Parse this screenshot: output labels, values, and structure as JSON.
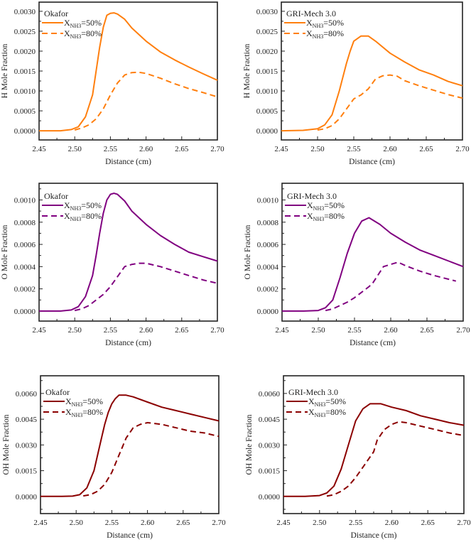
{
  "chart_data": [
    {
      "type": "line",
      "panel": "H-Okafor",
      "title": "Okafor",
      "xlabel": "Distance (cm)",
      "ylabel": "H Mole Fraction",
      "xlim": [
        2.45,
        2.7
      ],
      "ylim": [
        -0.00023,
        0.00323
      ],
      "xticks": [
        "2.45",
        "2.50",
        "2.55",
        "2.60",
        "2.65",
        "2.70"
      ],
      "yticks": [
        "0.0000",
        "0.0005",
        "0.0010",
        "0.0015",
        "0.0020",
        "0.0025",
        "0.0030"
      ],
      "color": "#ff7f0e",
      "legend_position": "top-left",
      "series": [
        {
          "name": "X_NH3=50%",
          "label_main": "X",
          "label_sub": "NH3",
          "label_tail": "=50%",
          "style": "solid",
          "x": [
            2.45,
            2.48,
            2.495,
            2.505,
            2.515,
            2.525,
            2.53,
            2.535,
            2.54,
            2.545,
            2.55,
            2.555,
            2.56,
            2.57,
            2.58,
            2.6,
            2.62,
            2.64,
            2.66,
            2.68,
            2.7
          ],
          "y": [
            0,
            0,
            3e-05,
            0.0001,
            0.00035,
            0.0009,
            0.0015,
            0.0021,
            0.0026,
            0.0029,
            0.00295,
            0.00296,
            0.00293,
            0.0028,
            0.00258,
            0.00225,
            0.00198,
            0.00178,
            0.0016,
            0.00143,
            0.00127
          ]
        },
        {
          "name": "X_NH3=80%",
          "label_main": "X",
          "label_sub": "NH3",
          "label_tail": "=80%",
          "style": "dashed",
          "x": [
            2.5,
            2.51,
            2.52,
            2.53,
            2.54,
            2.55,
            2.56,
            2.57,
            2.58,
            2.59,
            2.6,
            2.62,
            2.64,
            2.66,
            2.68,
            2.7
          ],
          "y": [
            2e-05,
            7e-05,
            0.00015,
            0.0003,
            0.00055,
            0.0009,
            0.0012,
            0.0014,
            0.00146,
            0.00147,
            0.00144,
            0.00132,
            0.00118,
            0.00106,
            0.00096,
            0.00085
          ]
        }
      ]
    },
    {
      "type": "line",
      "panel": "H-GRI",
      "title": "GRI-Mech 3.0",
      "xlabel": "Distance (cm)",
      "ylabel": "H Mole Fraction",
      "xlim": [
        2.45,
        2.7
      ],
      "ylim": [
        -0.00023,
        0.00323
      ],
      "xticks": [
        "2.45",
        "2.50",
        "2.55",
        "2.60",
        "2.65",
        "2.70"
      ],
      "yticks": [
        "0.0000",
        "0.0005",
        "0.0010",
        "0.0015",
        "0.0020",
        "0.0025",
        "0.0030"
      ],
      "color": "#ff7f0e",
      "legend_position": "top-left",
      "series": [
        {
          "name": "X_NH3=50%",
          "label_main": "X",
          "label_sub": "NH3",
          "label_tail": "=50%",
          "style": "solid",
          "x": [
            2.45,
            2.48,
            2.5,
            2.51,
            2.52,
            2.53,
            2.54,
            2.545,
            2.55,
            2.56,
            2.57,
            2.58,
            2.6,
            2.62,
            2.64,
            2.66,
            2.68,
            2.7
          ],
          "y": [
            0,
            1e-05,
            5e-05,
            0.00015,
            0.0004,
            0.001,
            0.0017,
            0.002,
            0.00225,
            0.00238,
            0.00238,
            0.00225,
            0.00195,
            0.00173,
            0.00153,
            0.0014,
            0.00124,
            0.00113
          ]
        },
        {
          "name": "X_NH3=80%",
          "label_main": "X",
          "label_sub": "NH3",
          "label_tail": "=80%",
          "style": "dashed",
          "x": [
            2.5,
            2.51,
            2.52,
            2.53,
            2.54,
            2.55,
            2.56,
            2.57,
            2.58,
            2.59,
            2.6,
            2.61,
            2.62,
            2.64,
            2.66,
            2.68,
            2.7
          ],
          "y": [
            2e-05,
            5e-05,
            0.00013,
            0.0003,
            0.00055,
            0.0008,
            0.0009,
            0.00105,
            0.0013,
            0.00138,
            0.0014,
            0.00137,
            0.00126,
            0.00113,
            0.00102,
            0.00091,
            0.00082
          ]
        }
      ]
    },
    {
      "type": "line",
      "panel": "O-Okafor",
      "title": "Okafor",
      "xlabel": "Distance (cm)",
      "ylabel": "O  Mole Fraction",
      "xlim": [
        2.45,
        2.7
      ],
      "ylim": [
        -9e-05,
        0.00115
      ],
      "xticks": [
        "2.45",
        "2.50",
        "2.55",
        "2.60",
        "2.65",
        "2.70"
      ],
      "yticks": [
        "0.0000",
        "0.0002",
        "0.0004",
        "0.0006",
        "0.0008",
        "0.0010"
      ],
      "color": "#800080",
      "legend_position": "top-left",
      "series": [
        {
          "name": "X_NH3=50%",
          "label_main": "X",
          "label_sub": "NH3",
          "label_tail": "=50%",
          "style": "solid",
          "x": [
            2.45,
            2.48,
            2.495,
            2.505,
            2.515,
            2.525,
            2.53,
            2.535,
            2.54,
            2.545,
            2.55,
            2.555,
            2.56,
            2.57,
            2.58,
            2.6,
            2.62,
            2.64,
            2.66,
            2.68,
            2.7
          ],
          "y": [
            0,
            0,
            1e-05,
            4e-05,
            0.00013,
            0.00032,
            0.0005,
            0.0007,
            0.00088,
            0.001,
            0.00105,
            0.00106,
            0.00105,
            0.00099,
            0.0009,
            0.00078,
            0.00068,
            0.0006,
            0.00053,
            0.00049,
            0.00045
          ]
        },
        {
          "name": "X_NH3=80%",
          "label_main": "X",
          "label_sub": "NH3",
          "label_tail": "=80%",
          "style": "dashed",
          "x": [
            2.5,
            2.51,
            2.52,
            2.53,
            2.54,
            2.55,
            2.56,
            2.57,
            2.58,
            2.59,
            2.6,
            2.62,
            2.64,
            2.66,
            2.68,
            2.7
          ],
          "y": [
            5e-06,
            2e-05,
            5e-05,
            0.0001,
            0.00015,
            0.00022,
            0.00031,
            0.0004,
            0.00042,
            0.00043,
            0.00043,
            0.0004,
            0.00036,
            0.00032,
            0.00028,
            0.00025
          ]
        }
      ]
    },
    {
      "type": "line",
      "panel": "O-GRI",
      "title": "GRI-Mech 3.0",
      "xlabel": "Distance (cm)",
      "ylabel": "O  Mole Fraction",
      "xlim": [
        2.45,
        2.7
      ],
      "ylim": [
        -9e-05,
        0.00115
      ],
      "xticks": [
        "2.45",
        "2.50",
        "2.55",
        "2.60",
        "2.65",
        "2.70"
      ],
      "yticks": [
        "0.0000",
        "0.0002",
        "0.0004",
        "0.0006",
        "0.0008",
        "0.0010"
      ],
      "color": "#800080",
      "legend_position": "top-left",
      "series": [
        {
          "name": "X_NH3=50%",
          "label_main": "X",
          "label_sub": "NH3",
          "label_tail": "=50%",
          "style": "solid",
          "x": [
            2.45,
            2.48,
            2.5,
            2.51,
            2.52,
            2.53,
            2.54,
            2.55,
            2.56,
            2.57,
            2.585,
            2.6,
            2.62,
            2.64,
            2.66,
            2.68,
            2.7
          ],
          "y": [
            0,
            0,
            5e-06,
            3e-05,
            0.0001,
            0.0003,
            0.00052,
            0.0007,
            0.00081,
            0.00084,
            0.00078,
            0.0007,
            0.00062,
            0.00055,
            0.0005,
            0.00045,
            0.0004
          ]
        },
        {
          "name": "X_NH3=80%",
          "label_main": "X",
          "label_sub": "NH3",
          "label_tail": "=80%",
          "style": "dashed",
          "x": [
            2.51,
            2.52,
            2.53,
            2.54,
            2.55,
            2.56,
            2.57,
            2.575,
            2.58,
            2.59,
            2.6,
            2.61,
            2.62,
            2.64,
            2.66,
            2.69
          ],
          "y": [
            5e-06,
            2e-05,
            5e-05,
            8e-05,
            0.00012,
            0.00017,
            0.00022,
            0.00025,
            0.0003,
            0.0004,
            0.00042,
            0.00044,
            0.00041,
            0.00036,
            0.00032,
            0.00027
          ]
        }
      ]
    },
    {
      "type": "line",
      "panel": "OH-Okafor",
      "title": "Okafor",
      "xlabel": "Distance (cm)",
      "ylabel": "OH  Mole Fraction",
      "xlim": [
        2.45,
        2.7
      ],
      "ylim": [
        -0.001,
        0.00703
      ],
      "xticks": [
        "2.45",
        "2.50",
        "2.55",
        "2.60",
        "2.65",
        "2.70"
      ],
      "yticks": [
        "0.0000",
        "0.0015",
        "0.0030",
        "0.0045",
        "0.0060"
      ],
      "color": "#8b0000",
      "legend_position": "top-left",
      "series": [
        {
          "name": "X_NH3=50%",
          "label_main": "X",
          "label_sub": "NH3",
          "label_tail": "=50%",
          "style": "solid",
          "x": [
            2.45,
            2.48,
            2.495,
            2.505,
            2.515,
            2.525,
            2.53,
            2.535,
            2.54,
            2.545,
            2.55,
            2.555,
            2.56,
            2.565,
            2.57,
            2.58,
            2.6,
            2.62,
            2.64,
            2.66,
            2.68,
            2.7
          ],
          "y": [
            0,
            0,
            2e-05,
            0.0001,
            0.0005,
            0.0015,
            0.0024,
            0.0033,
            0.0042,
            0.0049,
            0.0054,
            0.0057,
            0.0059,
            0.0059,
            0.0059,
            0.0058,
            0.0055,
            0.0052,
            0.005,
            0.0048,
            0.0046,
            0.0044
          ]
        },
        {
          "name": "X_NH3=80%",
          "label_main": "X",
          "label_sub": "NH3",
          "label_tail": "=80%",
          "style": "dashed",
          "x": [
            2.51,
            2.52,
            2.53,
            2.54,
            2.55,
            2.56,
            2.565,
            2.57,
            2.58,
            2.59,
            2.6,
            2.62,
            2.64,
            2.66,
            2.68,
            2.7
          ],
          "y": [
            3e-05,
            0.0001,
            0.0003,
            0.0007,
            0.0014,
            0.0024,
            0.0029,
            0.0034,
            0.004,
            0.0042,
            0.0043,
            0.0042,
            0.004,
            0.0038,
            0.0037,
            0.0035
          ]
        }
      ]
    },
    {
      "type": "line",
      "panel": "OH-GRI",
      "title": "GRI-Mech 3.0",
      "xlabel": "Distance (cm)",
      "ylabel": "OH  Mole Fraction",
      "xlim": [
        2.45,
        2.7
      ],
      "ylim": [
        -0.001,
        0.00703
      ],
      "xticks": [
        "2.45",
        "2.50",
        "2.55",
        "2.60",
        "2.65",
        "2.70"
      ],
      "yticks": [
        "0.0000",
        "0.0015",
        "0.0030",
        "0.0045",
        "0.0060"
      ],
      "color": "#8b0000",
      "legend_position": "top-left",
      "series": [
        {
          "name": "X_NH3=50%",
          "label_main": "X",
          "label_sub": "NH3",
          "label_tail": "=50%",
          "style": "solid",
          "x": [
            2.45,
            2.48,
            2.5,
            2.51,
            2.52,
            2.53,
            2.54,
            2.55,
            2.56,
            2.57,
            2.585,
            2.6,
            2.62,
            2.64,
            2.66,
            2.68,
            2.7
          ],
          "y": [
            0,
            0,
            5e-05,
            0.0002,
            0.0006,
            0.0016,
            0.003,
            0.0044,
            0.0051,
            0.0054,
            0.0054,
            0.0052,
            0.005,
            0.0047,
            0.0045,
            0.0043,
            0.00415
          ]
        },
        {
          "name": "X_NH3=80%",
          "label_main": "X",
          "label_sub": "NH3",
          "label_tail": "=80%",
          "style": "dashed",
          "x": [
            2.51,
            2.52,
            2.53,
            2.54,
            2.55,
            2.56,
            2.57,
            2.575,
            2.58,
            2.59,
            2.6,
            2.61,
            2.62,
            2.64,
            2.66,
            2.68,
            2.7
          ],
          "y": [
            2e-05,
            0.0001,
            0.0003,
            0.0006,
            0.0011,
            0.0017,
            0.0023,
            0.0026,
            0.0033,
            0.0039,
            0.0042,
            0.00435,
            0.0043,
            0.0041,
            0.0039,
            0.0037,
            0.00355
          ]
        }
      ]
    }
  ]
}
